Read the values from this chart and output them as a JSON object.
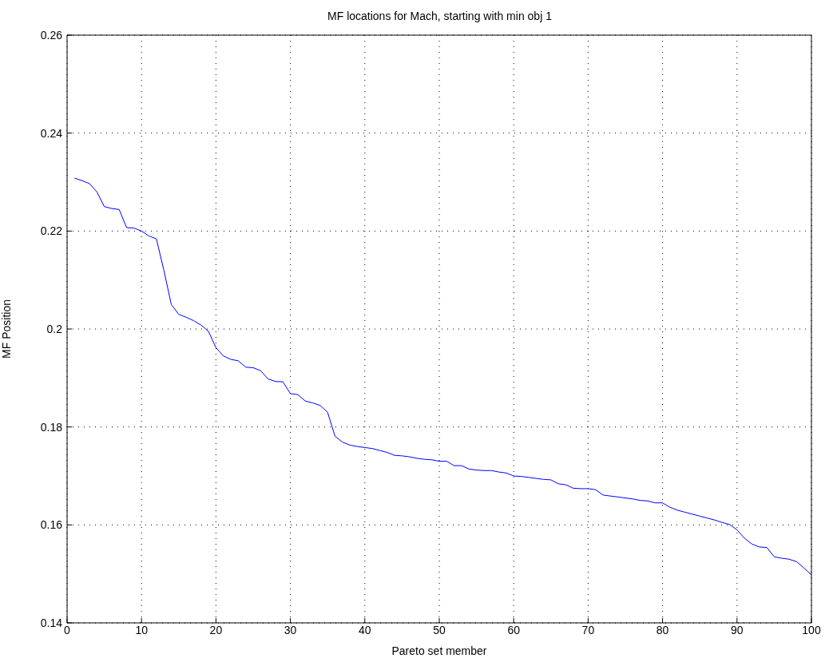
{
  "chart_data": {
    "type": "line",
    "title": "MF locations for Mach, starting with min obj 1",
    "xlabel": "Pareto set member",
    "ylabel": "MF Position",
    "x": [
      1,
      2,
      3,
      4,
      5,
      6,
      7,
      8,
      9,
      10,
      11,
      12,
      13,
      14,
      15,
      16,
      17,
      18,
      19,
      20,
      21,
      22,
      23,
      24,
      25,
      26,
      27,
      28,
      29,
      30,
      31,
      32,
      33,
      34,
      35,
      36,
      37,
      38,
      39,
      40,
      41,
      42,
      43,
      44,
      45,
      46,
      47,
      48,
      49,
      50,
      51,
      52,
      53,
      54,
      55,
      56,
      57,
      58,
      59,
      60,
      61,
      62,
      63,
      64,
      65,
      66,
      67,
      68,
      69,
      70,
      71,
      72,
      73,
      74,
      75,
      76,
      77,
      78,
      79,
      80,
      81,
      82,
      83,
      84,
      85,
      86,
      87,
      88,
      89,
      90,
      91,
      92,
      93,
      94,
      95,
      96,
      97,
      98,
      99,
      100
    ],
    "series": [
      {
        "color": "#0000ff",
        "values": [
          0.2308,
          0.2303,
          0.2297,
          0.228,
          0.225,
          0.2246,
          0.2244,
          0.2207,
          0.2206,
          0.22,
          0.219,
          0.2184,
          0.212,
          0.205,
          0.203,
          0.2024,
          0.2017,
          0.2008,
          0.1995,
          0.1962,
          0.1945,
          0.1938,
          0.1935,
          0.1922,
          0.1921,
          0.1915,
          0.1898,
          0.1893,
          0.1892,
          0.1868,
          0.1866,
          0.1853,
          0.1849,
          0.1844,
          0.183,
          0.1781,
          0.1769,
          0.1763,
          0.176,
          0.1758,
          0.1756,
          0.1752,
          0.1748,
          0.1742,
          0.1741,
          0.1739,
          0.1736,
          0.1734,
          0.1733,
          0.173,
          0.173,
          0.1721,
          0.1721,
          0.1714,
          0.1712,
          0.1711,
          0.1711,
          0.1708,
          0.1706,
          0.17,
          0.1699,
          0.1697,
          0.1695,
          0.1693,
          0.1692,
          0.1684,
          0.1682,
          0.1675,
          0.1674,
          0.1674,
          0.1672,
          0.1661,
          0.1659,
          0.1657,
          0.1655,
          0.1653,
          0.165,
          0.1649,
          0.1645,
          0.1645,
          0.1636,
          0.163,
          0.1626,
          0.1622,
          0.1618,
          0.1614,
          0.161,
          0.1605,
          0.1601,
          0.159,
          0.1573,
          0.1561,
          0.1555,
          0.1554,
          0.1535,
          0.1532,
          0.153,
          0.1525,
          0.1512,
          0.1498
        ]
      }
    ],
    "xlim": [
      0,
      100
    ],
    "xticks": [
      0,
      10,
      20,
      30,
      40,
      50,
      60,
      70,
      80,
      90,
      100
    ],
    "ylim": [
      0.14,
      0.26
    ],
    "yticks": [
      0.14,
      0.16,
      0.18,
      0.2,
      0.22,
      0.24,
      0.26
    ],
    "grid": true,
    "legend": false,
    "marker": "none",
    "line_style": "solid"
  }
}
